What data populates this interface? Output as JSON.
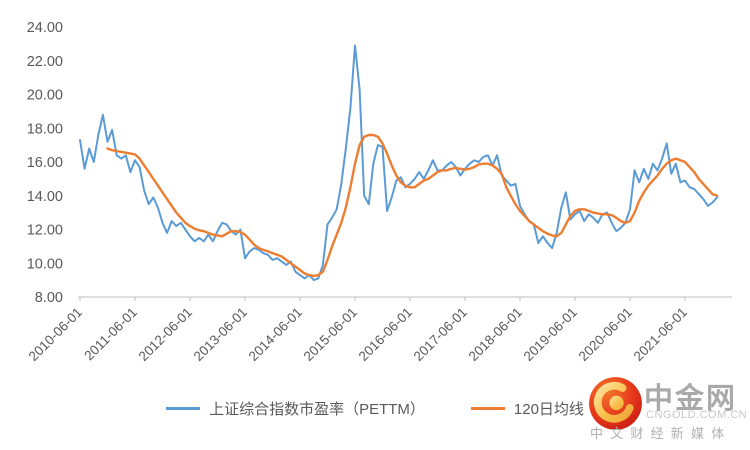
{
  "watermark": {
    "brand": "中金网",
    "domain": "CNGOLD.COM.CN",
    "tagline": "中文财经新媒体",
    "logo_colors": {
      "circle_top": "#f4762a",
      "circle_bottom": "#c6150f",
      "swirl_gold": "#f8c04a"
    }
  },
  "colors": {
    "pettm_blue": "#5B9BD5",
    "ma120_orange": "#ED7D31",
    "axis_text": "#595959",
    "axis_line": "#BFBFBF",
    "background": "#FFFFFF"
  },
  "chart_data": {
    "type": "line",
    "grid": false,
    "legend_position": "bottom",
    "x_axis": {
      "start": "2010-06-01",
      "step_months": 1,
      "tick_interval": "1 year",
      "tick_label_rotation_deg": -45,
      "tick_labels": [
        "2010-06-01",
        "2011-06-01",
        "2012-06-01",
        "2013-06-01",
        "2014-06-01",
        "2015-06-01",
        "2016-06-01",
        "2017-06-01",
        "2018-06-01",
        "2019-06-01",
        "2020-06-01",
        "2021-06-01"
      ]
    },
    "y_axis": {
      "min": 8,
      "max": 24,
      "tick_interval": 2,
      "tick_labels": [
        "24.00",
        "22.00",
        "20.00",
        "18.00",
        "16.00",
        "14.00",
        "12.00",
        "10.00",
        "8.00"
      ]
    },
    "series": [
      {
        "key": "pettm",
        "name": "上证综合指数市盈率（PETTM）",
        "color": "#5B9BD5",
        "width": 2,
        "values": [
          17.3,
          15.6,
          16.8,
          16.0,
          17.6,
          18.8,
          17.2,
          17.9,
          16.4,
          16.2,
          16.4,
          15.4,
          16.1,
          15.7,
          14.3,
          13.5,
          13.9,
          13.3,
          12.4,
          11.8,
          12.5,
          12.2,
          12.4,
          12.0,
          11.6,
          11.3,
          11.5,
          11.3,
          11.7,
          11.3,
          11.9,
          12.4,
          12.3,
          11.9,
          11.7,
          12.0,
          10.3,
          10.7,
          10.9,
          10.8,
          10.6,
          10.5,
          10.2,
          10.3,
          10.1,
          9.9,
          10.1,
          9.5,
          9.3,
          9.1,
          9.3,
          9.0,
          9.1,
          9.9,
          12.3,
          12.7,
          13.2,
          14.7,
          16.8,
          19.2,
          22.9,
          20.3,
          14.0,
          13.5,
          15.9,
          17.0,
          16.9,
          13.1,
          13.9,
          14.9,
          15.1,
          14.5,
          14.7,
          15.0,
          15.4,
          15.0,
          15.5,
          16.1,
          15.5,
          15.5,
          15.8,
          16.0,
          15.7,
          15.2,
          15.6,
          15.9,
          16.1,
          16.0,
          16.3,
          16.4,
          15.8,
          16.4,
          15.2,
          14.9,
          14.6,
          14.7,
          13.4,
          12.9,
          12.5,
          12.3,
          11.2,
          11.6,
          11.2,
          10.9,
          11.8,
          13.3,
          14.2,
          12.6,
          12.9,
          13.1,
          12.5,
          12.9,
          12.7,
          12.4,
          12.9,
          13.0,
          12.4,
          11.9,
          12.1,
          12.4,
          13.2,
          15.5,
          14.8,
          15.6,
          15.0,
          15.9,
          15.5,
          16.2,
          17.1,
          15.3,
          15.9,
          14.8,
          14.9,
          14.5,
          14.4,
          14.1,
          13.8,
          13.4,
          13.6,
          13.9
        ]
      },
      {
        "key": "ma120",
        "name": "120日均线",
        "color": "#ED7D31",
        "width": 2.4,
        "values": [
          null,
          null,
          null,
          null,
          null,
          null,
          16.8,
          16.7,
          16.65,
          16.6,
          16.55,
          16.5,
          16.45,
          16.2,
          15.8,
          15.4,
          15.0,
          14.6,
          14.2,
          13.8,
          13.4,
          13.0,
          12.7,
          12.4,
          12.2,
          12.05,
          11.95,
          11.9,
          11.8,
          11.7,
          11.65,
          11.6,
          11.75,
          11.9,
          11.9,
          11.85,
          11.7,
          11.4,
          11.1,
          10.9,
          10.8,
          10.7,
          10.6,
          10.5,
          10.4,
          10.2,
          10.0,
          9.8,
          9.6,
          9.4,
          9.3,
          9.25,
          9.3,
          9.5,
          10.2,
          11.0,
          11.7,
          12.4,
          13.3,
          14.5,
          15.9,
          17.0,
          17.5,
          17.6,
          17.6,
          17.5,
          17.1,
          16.5,
          15.8,
          15.2,
          14.8,
          14.6,
          14.5,
          14.5,
          14.7,
          14.9,
          15.0,
          15.2,
          15.4,
          15.5,
          15.5,
          15.6,
          15.65,
          15.6,
          15.55,
          15.6,
          15.7,
          15.85,
          15.9,
          15.9,
          15.8,
          15.6,
          15.3,
          14.5,
          14.0,
          13.5,
          13.1,
          12.8,
          12.5,
          12.3,
          12.1,
          11.9,
          11.75,
          11.65,
          11.6,
          11.8,
          12.3,
          12.8,
          13.1,
          13.2,
          13.2,
          13.1,
          13.0,
          12.95,
          12.9,
          12.9,
          12.85,
          12.7,
          12.5,
          12.4,
          12.5,
          13.0,
          13.7,
          14.2,
          14.6,
          14.9,
          15.2,
          15.6,
          15.9,
          16.1,
          16.2,
          16.1,
          16.0,
          15.7,
          15.4,
          15.0,
          14.7,
          14.4,
          14.1,
          14.0
        ]
      }
    ]
  }
}
